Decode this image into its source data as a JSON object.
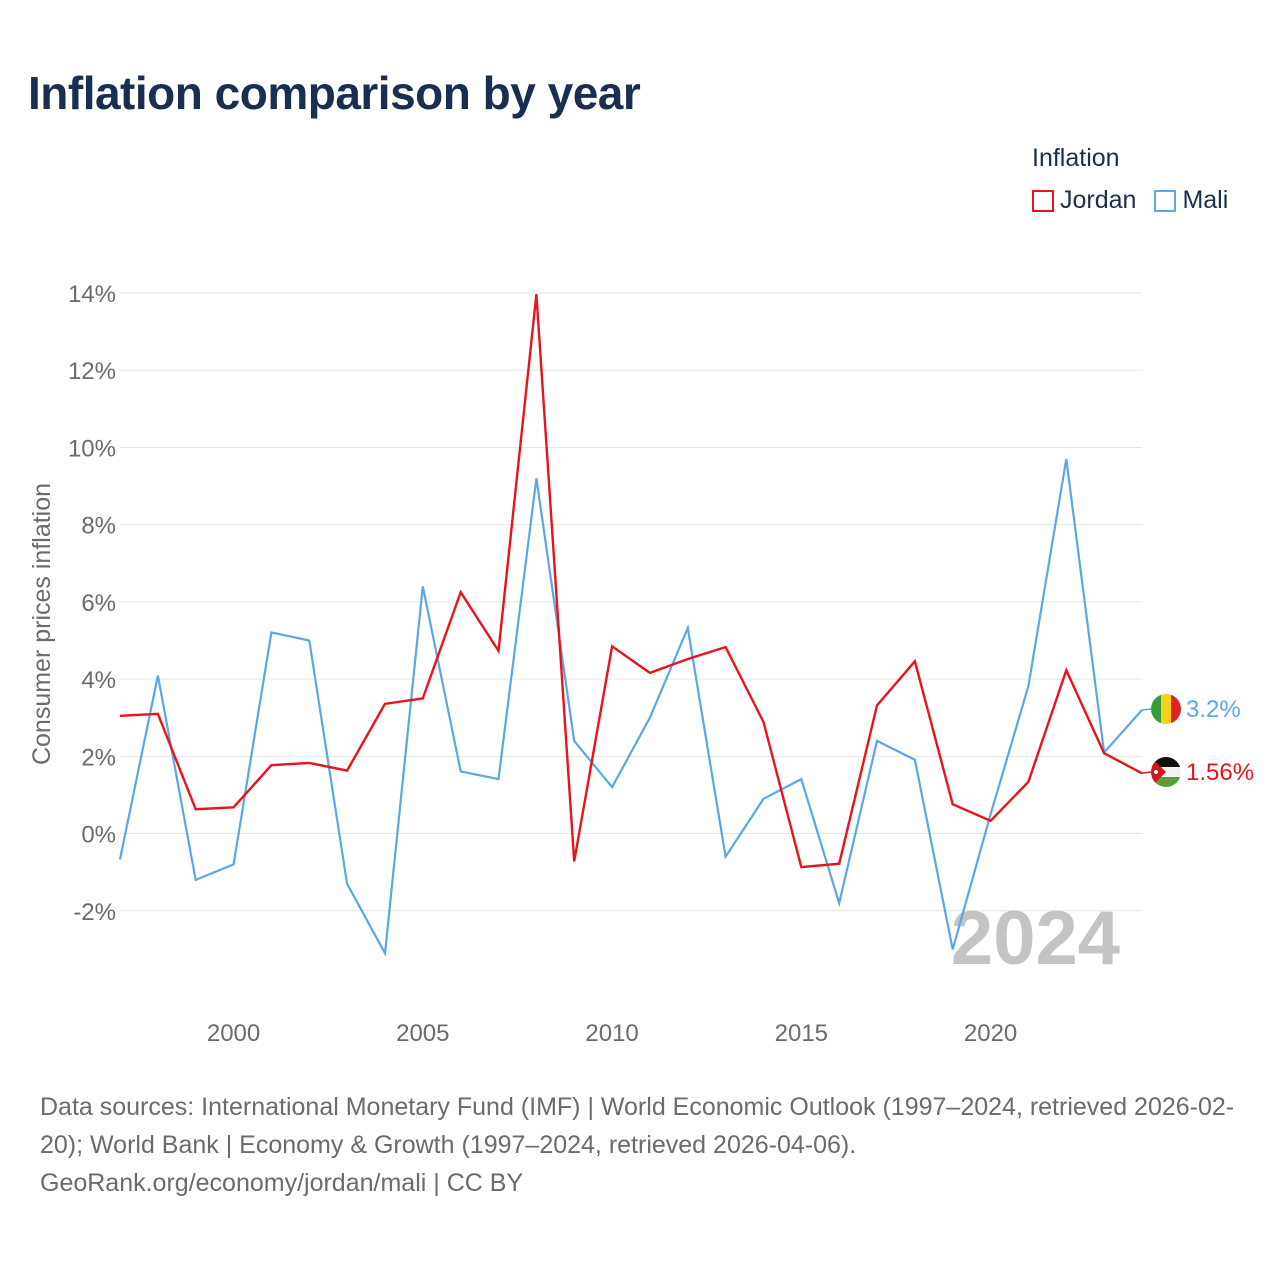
{
  "title": "Inflation comparison by year",
  "legend": {
    "title": "Inflation",
    "items": [
      {
        "label": "Jordan",
        "color": "#e8141c"
      },
      {
        "label": "Mali",
        "color": "#5ba7e6"
      }
    ]
  },
  "footer": {
    "sources": "Data sources: International Monetary Fund (IMF) | World Economic Outlook (1997–2024, retrieved 2026-02-20); World Bank | Economy & Growth (1997–2024, retrieved 2026-04-06).",
    "credit": "GeoRank.org/economy/jordan/mali | CC BY"
  },
  "chart_data": {
    "type": "line",
    "title": "Inflation comparison by year",
    "xlabel": "",
    "ylabel": "Consumer prices inflation",
    "xlim": [
      1997,
      2024
    ],
    "ylim": [
      -4,
      14
    ],
    "y_ticks": [
      -2,
      0,
      2,
      4,
      6,
      8,
      10,
      12,
      14
    ],
    "y_tick_labels": [
      "-2%",
      "0%",
      "2%",
      "4%",
      "6%",
      "8%",
      "10%",
      "12%",
      "14%"
    ],
    "x_ticks": [
      2000,
      2005,
      2010,
      2015,
      2020
    ],
    "x_tick_labels": [
      "2000",
      "2005",
      "2010",
      "2015",
      "2020"
    ],
    "grid": true,
    "year_watermark": "2024",
    "x": [
      1997,
      1998,
      1999,
      2000,
      2001,
      2002,
      2003,
      2004,
      2005,
      2006,
      2007,
      2008,
      2009,
      2010,
      2011,
      2012,
      2013,
      2014,
      2015,
      2016,
      2017,
      2018,
      2019,
      2020,
      2021,
      2022,
      2023,
      2024
    ],
    "series": [
      {
        "name": "Jordan",
        "color": "#e8141c",
        "end_label": "1.56%",
        "values": [
          3.05,
          3.1,
          0.63,
          0.68,
          1.77,
          1.83,
          1.63,
          3.36,
          3.5,
          6.25,
          4.73,
          13.97,
          -0.72,
          4.85,
          4.16,
          4.52,
          4.83,
          2.89,
          -0.87,
          -0.78,
          3.32,
          4.46,
          0.76,
          0.33,
          1.34,
          4.23,
          2.08,
          1.56
        ]
      },
      {
        "name": "Mali",
        "color": "#5ba7e6",
        "end_label": "3.2%",
        "values": [
          -0.67,
          4.09,
          -1.2,
          -0.8,
          5.21,
          5.0,
          -1.3,
          -3.1,
          6.4,
          1.61,
          1.41,
          9.2,
          2.4,
          1.2,
          3.0,
          5.32,
          -0.6,
          0.9,
          1.41,
          -1.8,
          2.4,
          1.91,
          -3.0,
          0.5,
          3.82,
          9.7,
          2.1,
          3.2
        ]
      }
    ]
  }
}
